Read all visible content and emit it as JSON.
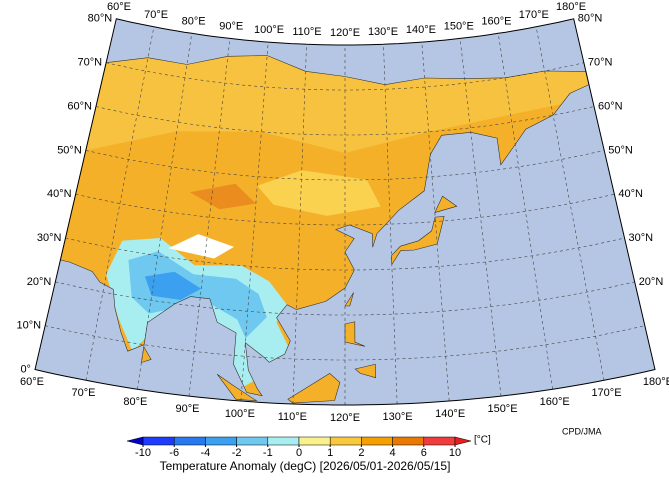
{
  "map": {
    "lon_labels": [
      "60°E",
      "70°E",
      "80°E",
      "90°E",
      "100°E",
      "110°E",
      "120°E",
      "130°E",
      "140°E",
      "150°E",
      "160°E",
      "170°E",
      "180°E"
    ],
    "lat_labels": [
      "0°",
      "10°N",
      "20°N",
      "30°N",
      "40°N",
      "50°N",
      "60°N",
      "70°N",
      "80°N"
    ],
    "colorbar": {
      "ticks": [
        -10,
        -6,
        -4,
        -2,
        -1,
        0,
        1,
        2,
        4,
        6,
        10
      ],
      "colors": [
        "#1e3cff",
        "#2878f0",
        "#3ca0f0",
        "#6ec8f0",
        "#a8eef0",
        "#faf08c",
        "#fac83c",
        "#f5a000",
        "#eb7800",
        "#f03c3c"
      ],
      "under_color": "#0000c8",
      "over_color": "#e61e1e",
      "unit": "[°C]"
    },
    "credit": "CPD/JMA",
    "title": "Temperature Anomaly (degC) [2026/05/01-2026/05/15]"
  }
}
